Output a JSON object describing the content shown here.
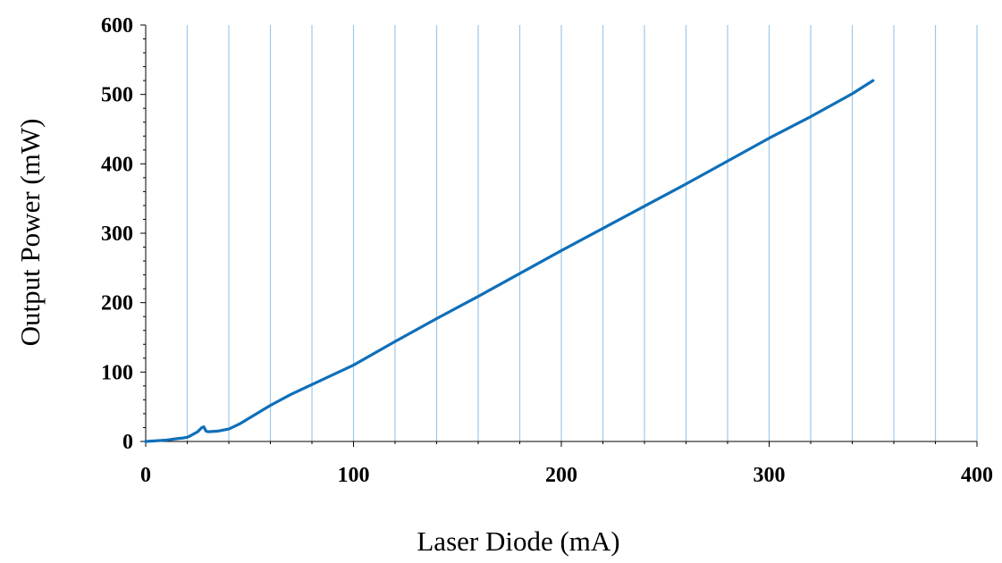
{
  "chart_data": {
    "type": "line",
    "xlabel": "Laser Diode (mA)",
    "ylabel": "Output Power (mW)",
    "xlim": [
      0,
      400
    ],
    "ylim": [
      0,
      600
    ],
    "x_ticks": [
      0,
      100,
      200,
      300,
      400
    ],
    "y_ticks": [
      0,
      100,
      200,
      300,
      400,
      500,
      600
    ],
    "x_tick_labels": [
      "0",
      "100",
      "200",
      "300",
      "400"
    ],
    "y_tick_labels": [
      "0",
      "100",
      "200",
      "300",
      "400",
      "500",
      "600"
    ],
    "vertical_grid_step": 20,
    "horizontal_grid": false,
    "x_minor_ticks_step": 20,
    "y_minor_ticks_step": 20,
    "series": [
      {
        "color": "#0f6fb8",
        "x": [
          0,
          5,
          10,
          15,
          18,
          20,
          22,
          25,
          27,
          28,
          29,
          30,
          35,
          40,
          45,
          50,
          60,
          70,
          80,
          90,
          100,
          120,
          140,
          160,
          180,
          200,
          220,
          240,
          260,
          280,
          300,
          320,
          340,
          350
        ],
        "y": [
          0,
          1,
          2,
          4,
          5,
          6,
          9,
          14,
          20,
          21,
          15,
          14,
          15,
          18,
          25,
          34,
          52,
          68,
          82,
          96,
          110,
          144,
          177,
          209,
          242,
          275,
          307,
          339,
          371,
          404,
          437,
          468,
          501,
          520
        ]
      }
    ]
  },
  "colors": {
    "grid": "#9cc8ea",
    "axis": "#000000",
    "line": "#0f6fb8"
  }
}
